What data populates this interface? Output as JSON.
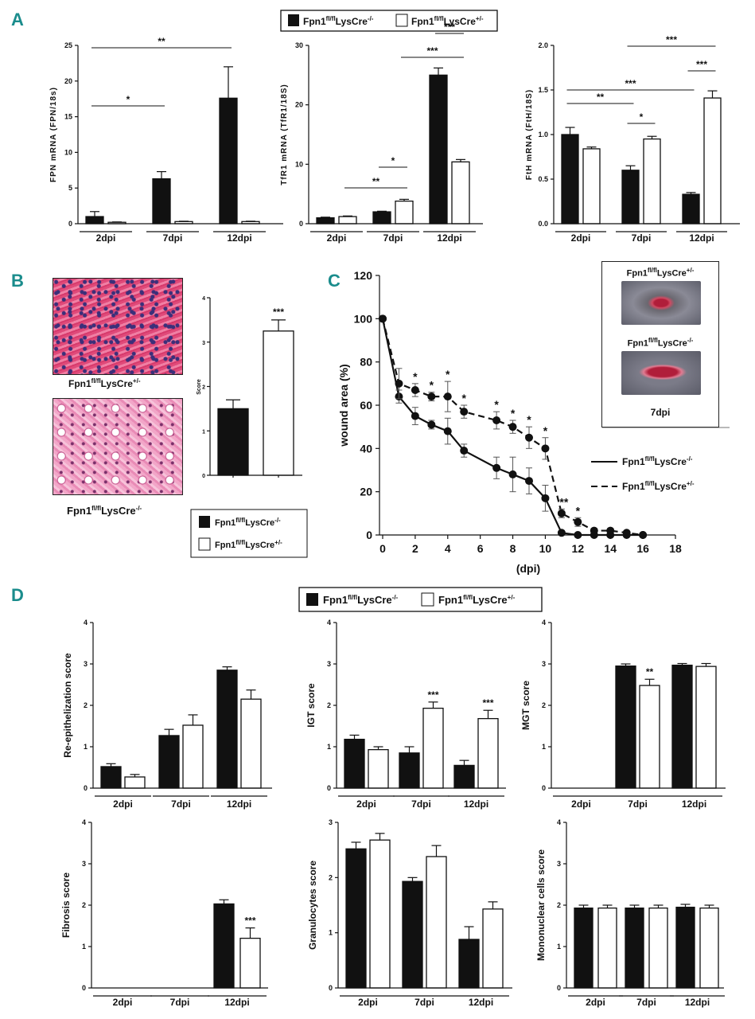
{
  "colors": {
    "accent": "#1a8c8c",
    "ko": "#111111",
    "ctrl": "#ffffff"
  },
  "panels": {
    "a": "A",
    "b": "B",
    "c": "C",
    "d": "D"
  },
  "legend": {
    "ko": "Fpn1fl/flLysCre-/-",
    "ctrl": "Fpn1fl/flLysCre+/-",
    "ko_base": "Fpn1",
    "ko_sup": "fl/fl",
    "ko_mid": "LysCre",
    "ko_end": "-/-",
    "ctrl_base": "Fpn1",
    "ctrl_sup": "fl/fl",
    "ctrl_mid": "LysCre",
    "ctrl_end": "+/-"
  },
  "photo": {
    "title_ctrl": "Fpn1fl/flLysCre+/-",
    "title_ko": "Fpn1fl/flLysCre-/-",
    "day": "7dpi"
  },
  "histology": {
    "label_ctrl": "Fpn1fl/flLysCre+/-",
    "label_ko": "Fpn1fl/flLysCre-/-"
  },
  "chart_data": [
    {
      "id": "A1",
      "type": "bar",
      "ylabel": "FPN mRNA (FPN/18s)",
      "ylim": [
        0,
        25
      ],
      "yticks": [
        0,
        5,
        10,
        15,
        20,
        25
      ],
      "categories": [
        "2dpi",
        "7dpi",
        "12dpi"
      ],
      "series": [
        {
          "name": "Fpn1fl/flLysCre-/-",
          "values": [
            1.0,
            6.3,
            17.6
          ],
          "errors": [
            0.7,
            1.0,
            4.4
          ]
        },
        {
          "name": "Fpn1fl/flLysCre+/-",
          "values": [
            0.2,
            0.3,
            0.3
          ],
          "errors": [
            0.05,
            0.05,
            0.05
          ]
        }
      ],
      "sig": [
        {
          "from": "2dpi-ko",
          "to": "7dpi-ko",
          "label": "*"
        },
        {
          "from": "2dpi-ko",
          "to": "12dpi-ko",
          "label": "**"
        }
      ]
    },
    {
      "id": "A2",
      "type": "bar",
      "ylabel": "TfR1 mRNA (TfR1/18S)",
      "ylim": [
        0,
        30
      ],
      "yticks": [
        0,
        10,
        20,
        30
      ],
      "categories": [
        "2dpi",
        "7dpi",
        "12dpi"
      ],
      "series": [
        {
          "name": "Fpn1fl/flLysCre-/-",
          "values": [
            1.0,
            2.0,
            25.0
          ],
          "errors": [
            0.1,
            0.1,
            1.2
          ]
        },
        {
          "name": "Fpn1fl/flLysCre+/-",
          "values": [
            1.2,
            3.8,
            10.4
          ],
          "errors": [
            0.1,
            0.3,
            0.4
          ]
        }
      ],
      "sig": [
        {
          "from": "2dpi-ctrl",
          "to": "7dpi-ctrl",
          "label": "**"
        },
        {
          "from": "7dpi-ko",
          "to": "7dpi-ctrl",
          "label": "*"
        },
        {
          "from": "12dpi-ko",
          "to": "12dpi-ctrl",
          "label": "***"
        },
        {
          "from": "7dpi-ctrl",
          "to": "12dpi-ctrl",
          "label": "***"
        }
      ]
    },
    {
      "id": "A3",
      "type": "bar",
      "ylabel": "FtH mRNA (FtH/18S)",
      "ylim": [
        0,
        2.0
      ],
      "yticks": [
        0.0,
        0.5,
        1.0,
        1.5,
        2.0
      ],
      "categories": [
        "2dpi",
        "7dpi",
        "12dpi"
      ],
      "series": [
        {
          "name": "Fpn1fl/flLysCre-/-",
          "values": [
            1.0,
            0.6,
            0.33
          ],
          "errors": [
            0.08,
            0.05,
            0.02
          ]
        },
        {
          "name": "Fpn1fl/flLysCre+/-",
          "values": [
            0.84,
            0.95,
            1.41
          ],
          "errors": [
            0.02,
            0.03,
            0.08
          ]
        }
      ],
      "sig": [
        {
          "from": "2dpi-ko",
          "to": "7dpi-ko",
          "label": "**"
        },
        {
          "from": "7dpi-ko",
          "to": "7dpi-ctrl",
          "label": "*"
        },
        {
          "from": "2dpi-ko",
          "to": "12dpi-ko",
          "label": "***"
        },
        {
          "from": "12dpi-ko",
          "to": "12dpi-ctrl",
          "label": "***"
        },
        {
          "from": "7dpi-ko",
          "to": "12dpi-ctrl",
          "label": "***"
        }
      ]
    },
    {
      "id": "B",
      "type": "bar",
      "ylabel": "Score",
      "ylim": [
        0,
        4
      ],
      "yticks": [
        0,
        1,
        2,
        3,
        4
      ],
      "categories": [
        "Fpn1fl/flLysCre-/-",
        "Fpn1fl/flLysCre+/-"
      ],
      "values": [
        1.5,
        3.25
      ],
      "errors": [
        0.2,
        0.25
      ],
      "sig_label": "***"
    },
    {
      "id": "C",
      "type": "line",
      "xlabel": "(dpi)",
      "ylabel": "wound area (%)",
      "xlim": [
        0,
        18
      ],
      "ylim": [
        0,
        120
      ],
      "xticks": [
        0,
        2,
        4,
        6,
        8,
        10,
        12,
        14,
        16,
        18
      ],
      "yticks": [
        0,
        20,
        40,
        60,
        80,
        100,
        120
      ],
      "series": [
        {
          "name": "Fpn1fl/flLysCre-/-",
          "style": "solid",
          "x": [
            0,
            1,
            2,
            3,
            4,
            5,
            7,
            8,
            9,
            10,
            11,
            12,
            13,
            14,
            15,
            16
          ],
          "y": [
            100,
            64,
            55,
            51,
            48,
            39,
            31,
            28,
            25,
            17,
            1,
            0,
            0,
            0,
            0,
            0
          ],
          "errors": [
            0,
            3,
            4,
            2,
            6,
            3,
            5,
            8,
            6,
            6,
            1,
            0,
            0,
            0,
            0,
            0
          ]
        },
        {
          "name": "Fpn1fl/flLysCre+/-",
          "style": "dashed",
          "x": [
            0,
            1,
            2,
            3,
            4,
            5,
            7,
            8,
            9,
            10,
            11,
            12,
            13,
            14,
            15,
            16
          ],
          "y": [
            100,
            70,
            67,
            64,
            64,
            57,
            53,
            50,
            45,
            40,
            10,
            6,
            2,
            2,
            1,
            0
          ],
          "errors": [
            0,
            7,
            3,
            2,
            7,
            3,
            4,
            3,
            5,
            5,
            2,
            2,
            1,
            1,
            1,
            0
          ]
        }
      ],
      "annotations": [
        {
          "x": 2,
          "label": "*"
        },
        {
          "x": 3,
          "label": "*"
        },
        {
          "x": 4,
          "label": "*"
        },
        {
          "x": 5,
          "label": "*"
        },
        {
          "x": 7,
          "label": "*"
        },
        {
          "x": 8,
          "label": "*"
        },
        {
          "x": 9,
          "label": "*"
        },
        {
          "x": 10,
          "label": "*"
        },
        {
          "x": 11,
          "label": "**"
        },
        {
          "x": 12,
          "label": "*"
        }
      ]
    },
    {
      "id": "D1",
      "type": "bar",
      "ylabel": "Re-epithelization score",
      "ylim": [
        0,
        4
      ],
      "yticks": [
        0,
        1,
        2,
        3,
        4
      ],
      "categories": [
        "2dpi",
        "7dpi",
        "12dpi"
      ],
      "series": [
        {
          "name": "Fpn1fl/flLysCre-/-",
          "values": [
            0.52,
            1.27,
            2.85
          ],
          "errors": [
            0.07,
            0.15,
            0.08
          ]
        },
        {
          "name": "Fpn1fl/flLysCre+/-",
          "values": [
            0.27,
            1.52,
            2.15
          ],
          "errors": [
            0.06,
            0.25,
            0.22
          ]
        }
      ],
      "stars": [
        "",
        "",
        ""
      ]
    },
    {
      "id": "D2",
      "type": "bar",
      "ylabel": "IGT score",
      "ylim": [
        0,
        4
      ],
      "yticks": [
        0,
        1,
        2,
        3,
        4
      ],
      "categories": [
        "2dpi",
        "7dpi",
        "12dpi"
      ],
      "series": [
        {
          "name": "Fpn1fl/flLysCre-/-",
          "values": [
            1.18,
            0.85,
            0.55
          ],
          "errors": [
            0.1,
            0.15,
            0.12
          ]
        },
        {
          "name": "Fpn1fl/flLysCre+/-",
          "values": [
            0.93,
            1.93,
            1.68
          ],
          "errors": [
            0.07,
            0.15,
            0.2
          ]
        }
      ],
      "stars": [
        "",
        "***",
        "***"
      ]
    },
    {
      "id": "D3",
      "type": "bar",
      "ylabel": "MGT score",
      "ylim": [
        0,
        4
      ],
      "yticks": [
        0,
        1,
        2,
        3,
        4
      ],
      "categories": [
        "2dpi",
        "7dpi",
        "12dpi"
      ],
      "series": [
        {
          "name": "Fpn1fl/flLysCre-/-",
          "values": [
            0,
            2.95,
            2.97
          ],
          "errors": [
            0,
            0.05,
            0.04
          ]
        },
        {
          "name": "Fpn1fl/flLysCre+/-",
          "values": [
            0,
            2.48,
            2.94
          ],
          "errors": [
            0,
            0.15,
            0.07
          ]
        }
      ],
      "stars": [
        "",
        "**",
        ""
      ]
    },
    {
      "id": "D4",
      "type": "bar",
      "ylabel": "Fibrosis score",
      "ylim": [
        0,
        4
      ],
      "yticks": [
        0,
        1,
        2,
        3,
        4
      ],
      "categories": [
        "2dpi",
        "7dpi",
        "12dpi"
      ],
      "series": [
        {
          "name": "Fpn1fl/flLysCre-/-",
          "values": [
            0,
            0,
            2.03
          ],
          "errors": [
            0,
            0,
            0.1
          ]
        },
        {
          "name": "Fpn1fl/flLysCre+/-",
          "values": [
            0,
            0,
            1.2
          ],
          "errors": [
            0,
            0,
            0.25
          ]
        }
      ],
      "stars": [
        "",
        "",
        "***"
      ]
    },
    {
      "id": "D5",
      "type": "bar",
      "ylabel": "Granulocytes score",
      "ylim": [
        0,
        3
      ],
      "yticks": [
        0,
        1,
        2,
        3
      ],
      "categories": [
        "2dpi",
        "7dpi",
        "12dpi"
      ],
      "series": [
        {
          "name": "Fpn1fl/flLysCre-/-",
          "values": [
            2.52,
            1.93,
            0.88
          ],
          "errors": [
            0.12,
            0.07,
            0.23
          ]
        },
        {
          "name": "Fpn1fl/flLysCre+/-",
          "values": [
            2.68,
            2.38,
            1.43
          ],
          "errors": [
            0.12,
            0.2,
            0.13
          ]
        }
      ],
      "stars": [
        "",
        "",
        ""
      ]
    },
    {
      "id": "D6",
      "type": "bar",
      "ylabel": "Mononuclear cells score",
      "ylim": [
        0,
        4
      ],
      "yticks": [
        0,
        1,
        2,
        3,
        4
      ],
      "categories": [
        "2dpi",
        "7dpi",
        "12dpi"
      ],
      "series": [
        {
          "name": "Fpn1fl/flLysCre-/-",
          "values": [
            1.93,
            1.93,
            1.95
          ],
          "errors": [
            0.07,
            0.07,
            0.07
          ]
        },
        {
          "name": "Fpn1fl/flLysCre+/-",
          "values": [
            1.93,
            1.93,
            1.93
          ],
          "errors": [
            0.07,
            0.07,
            0.07
          ]
        }
      ],
      "stars": [
        "",
        "",
        ""
      ]
    }
  ]
}
